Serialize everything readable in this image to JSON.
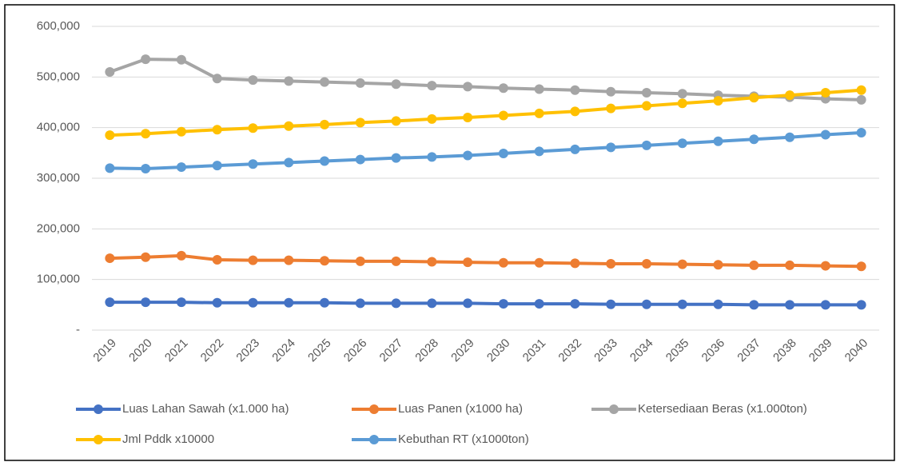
{
  "chart_data": {
    "type": "line",
    "categories": [
      "2019",
      "2020",
      "2021",
      "2022",
      "2023",
      "2024",
      "2025",
      "2026",
      "2027",
      "2028",
      "2029",
      "2030",
      "2031",
      "2032",
      "2033",
      "2034",
      "2035",
      "2036",
      "2037",
      "2038",
      "2039",
      "2040"
    ],
    "series": [
      {
        "name": "Luas Lahan Sawah (x1.000 ha)",
        "color": "#4472c4",
        "values": [
          55000,
          55000,
          55000,
          54000,
          54000,
          54000,
          54000,
          53000,
          53000,
          53000,
          53000,
          52000,
          52000,
          52000,
          51000,
          51000,
          51000,
          51000,
          50000,
          50000,
          50000,
          50000
        ]
      },
      {
        "name": "Luas Panen (x1000 ha)",
        "color": "#ed7d31",
        "values": [
          142000,
          144000,
          147000,
          139000,
          138000,
          138000,
          137000,
          136000,
          136000,
          135000,
          134000,
          133000,
          133000,
          132000,
          131000,
          131000,
          130000,
          129000,
          128000,
          128000,
          127000,
          126000
        ]
      },
      {
        "name": "Ketersediaan Beras (x1.000ton)",
        "color": "#a5a5a5",
        "values": [
          510000,
          535000,
          534000,
          497000,
          494000,
          492000,
          490000,
          488000,
          486000,
          483000,
          481000,
          478000,
          476000,
          474000,
          471000,
          469000,
          467000,
          464000,
          462000,
          460000,
          457000,
          455000
        ]
      },
      {
        "name": "Jml Pddk x10000",
        "color": "#ffc000",
        "values": [
          385000,
          388000,
          392000,
          396000,
          399000,
          403000,
          406000,
          410000,
          413000,
          417000,
          420000,
          424000,
          428000,
          432000,
          438000,
          443000,
          448000,
          453000,
          459000,
          464000,
          469000,
          474000
        ]
      },
      {
        "name": "Kebuthan RT (x1000ton)",
        "color": "#5b9bd5",
        "values": [
          320000,
          319000,
          322000,
          325000,
          328000,
          331000,
          334000,
          337000,
          340000,
          342000,
          345000,
          349000,
          353000,
          357000,
          361000,
          365000,
          369000,
          373000,
          377000,
          381000,
          386000,
          390000
        ]
      }
    ],
    "ylim": [
      0,
      600000
    ],
    "yticks": [
      {
        "value": 0,
        "label": "-"
      },
      {
        "value": 100000,
        "label": "100,000"
      },
      {
        "value": 200000,
        "label": "200,000"
      },
      {
        "value": 300000,
        "label": "300,000"
      },
      {
        "value": 400000,
        "label": "400,000"
      },
      {
        "value": 500000,
        "label": "500,000"
      },
      {
        "value": 600000,
        "label": "600,000"
      }
    ],
    "grid": true
  }
}
